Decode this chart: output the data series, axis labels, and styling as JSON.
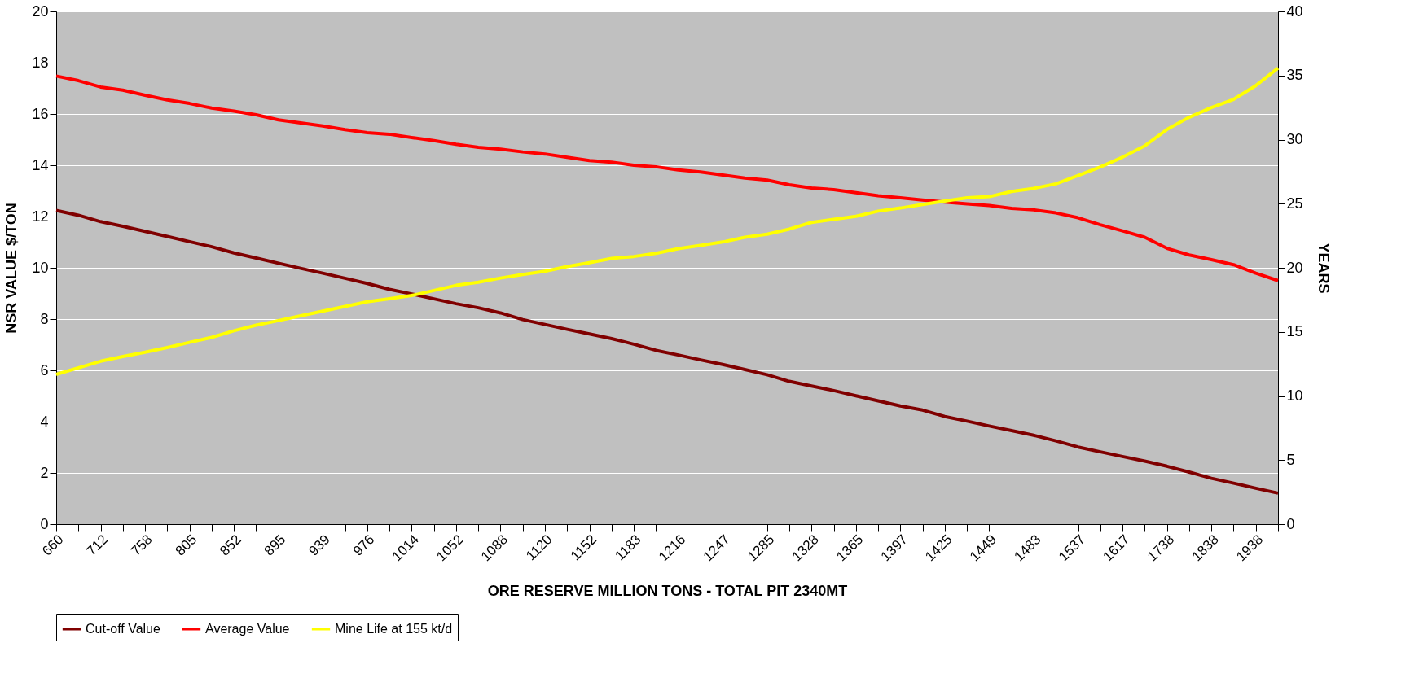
{
  "chart_data": {
    "type": "line",
    "xlabel": "ORE RESERVE MILLION TONS -  TOTAL PIT 2340MT",
    "ylabel": "NSR VALUE $/TON",
    "y2label": "YEARS",
    "categories": [
      "660",
      null,
      "712",
      null,
      "758",
      null,
      "805",
      null,
      "852",
      null,
      "895",
      null,
      "939",
      null,
      "976",
      null,
      "1014",
      null,
      "1052",
      null,
      "1088",
      null,
      "1120",
      null,
      "1152",
      null,
      "1183",
      null,
      "1216",
      null,
      "1247",
      null,
      "1285",
      null,
      "1328",
      null,
      "1365",
      null,
      "1397",
      null,
      "1425",
      null,
      "1449",
      null,
      "1483",
      null,
      "1537",
      null,
      "1617",
      null,
      "1738",
      null,
      "1838",
      null,
      "1938",
      null
    ],
    "series": [
      {
        "name": "Cut-off Value",
        "color": "#800000",
        "values": [
          12.24,
          12.05,
          11.8,
          11.62,
          11.42,
          11.22,
          11.02,
          10.82,
          10.58,
          10.38,
          10.18,
          9.98,
          9.79,
          9.59,
          9.39,
          9.16,
          8.98,
          8.79,
          8.6,
          8.44,
          8.24,
          7.98,
          7.79,
          7.6,
          7.42,
          7.24,
          7.02,
          6.78,
          6.6,
          6.41,
          6.23,
          6.03,
          5.83,
          5.57,
          5.39,
          5.21,
          5.01,
          4.81,
          4.61,
          4.45,
          4.2,
          4.02,
          3.83,
          3.65,
          3.47,
          3.25,
          3.01,
          2.82,
          2.64,
          2.46,
          2.26,
          2.03,
          1.79,
          1.6,
          1.4,
          1.21
        ]
      },
      {
        "name": "Average Value",
        "color": "#ff0000",
        "values": [
          17.48,
          17.3,
          17.05,
          16.93,
          16.73,
          16.55,
          16.41,
          16.23,
          16.11,
          15.97,
          15.77,
          15.65,
          15.53,
          15.39,
          15.27,
          15.21,
          15.08,
          14.96,
          14.82,
          14.7,
          14.63,
          14.52,
          14.44,
          14.31,
          14.18,
          14.12,
          14.0,
          13.94,
          13.82,
          13.74,
          13.62,
          13.5,
          13.42,
          13.24,
          13.11,
          13.05,
          12.93,
          12.81,
          12.73,
          12.64,
          12.56,
          12.49,
          12.43,
          12.32,
          12.26,
          12.14,
          11.95,
          11.68,
          11.44,
          11.19,
          10.76,
          10.5,
          10.32,
          10.12,
          9.79,
          9.5
        ]
      },
      {
        "name": "Mine Life at 155 kt/d",
        "color": "#ffff00",
        "axis": "y2",
        "values": [
          11.68,
          12.2,
          12.71,
          13.08,
          13.41,
          13.78,
          14.18,
          14.57,
          15.09,
          15.52,
          15.88,
          16.25,
          16.62,
          16.98,
          17.35,
          17.59,
          17.84,
          18.23,
          18.63,
          18.87,
          19.2,
          19.48,
          19.73,
          20.09,
          20.4,
          20.73,
          20.88,
          21.13,
          21.49,
          21.74,
          22.01,
          22.38,
          22.62,
          23.02,
          23.54,
          23.78,
          24.02,
          24.42,
          24.66,
          24.94,
          25.21,
          25.46,
          25.55,
          25.95,
          26.19,
          26.55,
          27.2,
          27.87,
          28.63,
          29.51,
          30.79,
          31.74,
          32.5,
          33.14,
          34.21,
          35.58
        ]
      }
    ],
    "ylim": [
      0,
      20
    ],
    "yticks": [
      0,
      2,
      4,
      6,
      8,
      10,
      12,
      14,
      16,
      18,
      20
    ],
    "y2lim": [
      0,
      40
    ],
    "y2ticks": [
      0,
      5,
      10,
      15,
      20,
      25,
      30,
      35,
      40
    ],
    "grid": "y",
    "legend": "bottom",
    "marker": "none",
    "line_style": "solid"
  }
}
